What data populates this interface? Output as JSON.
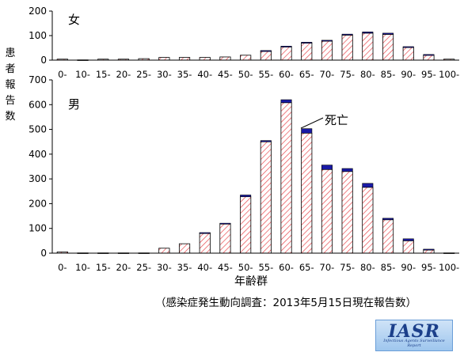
{
  "y_axis_title": "患者報告数",
  "x_axis_title": "年齢群",
  "source_note": "（感染症発生動向調査：2013年5月15日現在報告数）",
  "death_annotation": "死亡",
  "logo": {
    "main": "IASR",
    "sub": "Infectious Agents Surveillance Report"
  },
  "colors": {
    "hatch": "#e8484d",
    "death": "#1a1aa6",
    "axis": "#000000"
  },
  "chart_data": [
    {
      "type": "bar",
      "panel": "女",
      "stacked": true,
      "categories": [
        "0-",
        "10-",
        "15-",
        "20-",
        "25-",
        "30-",
        "35-",
        "40-",
        "45-",
        "50-",
        "55-",
        "60-",
        "65-",
        "70-",
        "75-",
        "80-",
        "85-",
        "90-",
        "95-",
        "100-"
      ],
      "series": [
        {
          "key": "alive",
          "values": [
            4,
            1,
            4,
            4,
            6,
            11,
            11,
            11,
            13,
            20,
            38,
            55,
            70,
            78,
            102,
            110,
            105,
            52,
            21,
            4
          ]
        },
        {
          "key": "deaths",
          "name": "死亡",
          "values": [
            0,
            0,
            0,
            0,
            0,
            0,
            0,
            0,
            0,
            0,
            1,
            2,
            3,
            3,
            4,
            5,
            5,
            3,
            2,
            0
          ]
        }
      ],
      "ylim": [
        0,
        200
      ],
      "yticks": [
        0,
        100,
        200
      ]
    },
    {
      "type": "bar",
      "panel": "男",
      "stacked": true,
      "categories": [
        "0-",
        "10-",
        "15-",
        "20-",
        "25-",
        "30-",
        "35-",
        "40-",
        "45-",
        "50-",
        "55-",
        "60-",
        "65-",
        "70-",
        "75-",
        "80-",
        "85-",
        "90-",
        "95-",
        "100-"
      ],
      "series": [
        {
          "key": "alive",
          "values": [
            5,
            1,
            1,
            1,
            1,
            20,
            38,
            82,
            120,
            228,
            450,
            608,
            485,
            338,
            330,
            266,
            135,
            50,
            15,
            1
          ]
        },
        {
          "key": "deaths",
          "name": "死亡",
          "values": [
            0,
            0,
            0,
            0,
            0,
            0,
            0,
            1,
            1,
            7,
            5,
            12,
            18,
            18,
            12,
            16,
            6,
            8,
            1,
            0
          ]
        }
      ],
      "ylim": [
        0,
        700
      ],
      "yticks": [
        0,
        100,
        200,
        300,
        400,
        500,
        600,
        700
      ]
    }
  ]
}
